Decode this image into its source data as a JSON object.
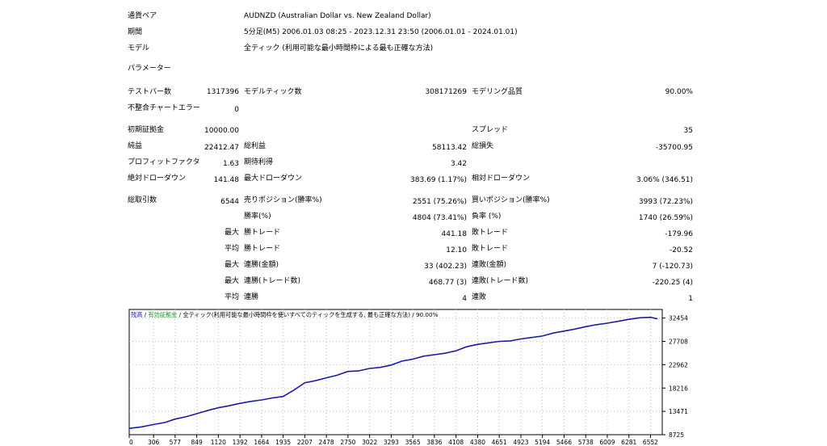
{
  "header": {
    "symbol_label": "通貨ペア",
    "symbol_value": "AUDNZD (Australian Dollar vs. New Zealand Dollar)",
    "period_label": "期間",
    "period_value": "5分足(M5) 2006.01.03 08:25 - 2023.12.31 23:50 (2006.01.01 - 2024.01.01)",
    "model_label": "モデル",
    "model_value": "全ティック (利用可能な最小時間枠による最も正確な方法)",
    "params_label": "パラメーター"
  },
  "stats": {
    "bars_label": "テストバー数",
    "bars_value": "1317396",
    "ticks_label": "モデルティック数",
    "ticks_value": "308171269",
    "quality_label": "モデリング品質",
    "quality_value": "90.00%",
    "mismatch_label": "不整合チャートエラー",
    "mismatch_value": "0",
    "deposit_label": "初期証拠金",
    "deposit_value": "10000.00",
    "spread_label": "スプレッド",
    "spread_value": "35",
    "netprofit_label": "純益",
    "netprofit_value": "22412.47",
    "grossprofit_label": "総利益",
    "grossprofit_value": "58113.42",
    "grossloss_label": "総損失",
    "grossloss_value": "-35700.95",
    "pf_label": "プロフィットファクタ",
    "pf_value": "1.63",
    "expected_label": "期待利得",
    "expected_value": "3.42",
    "absdd_label": "絶対ドローダウン",
    "absdd_value": "141.48",
    "maxdd_label": "最大ドローダウン",
    "maxdd_value": "383.69 (1.17%)",
    "reldd_label": "相対ドローダウン",
    "reldd_value": "3.06% (346.51)",
    "totaltrades_label": "総取引数",
    "totaltrades_value": "6544",
    "short_label": "売りポジション(勝率%)",
    "short_value": "2551 (75.26%)",
    "long_label": "買いポジション(勝率%)",
    "long_value": "3993 (72.23%)",
    "winrate_label": "勝率(%)",
    "winrate_value": "4804 (73.41%)",
    "lossrate_label": "負率 (%)",
    "lossrate_value": "1740 (26.59%)",
    "max_label": "最大",
    "avg_label": "平均",
    "win_trade_label": "勝トレード",
    "loss_trade_label": "敗トレード",
    "maxwin_value": "441.18",
    "maxloss_value": "-179.96",
    "avgwin_value": "12.10",
    "avgloss_value": "-20.52",
    "conswin_amount_label": "連勝(金額)",
    "conswin_amount_value": "33 (402.23)",
    "consloss_amount_label": "連敗(金額)",
    "consloss_amount_value": "7 (-120.73)",
    "conswin_trades_label": "連勝(トレード数)",
    "conswin_trades_value": "468.77 (3)",
    "consloss_trades_label": "連敗(トレード数)",
    "consloss_trades_value": "-220.25 (4)",
    "avgconswin_label": "連勝",
    "avgconswin_value": "4",
    "avgconsloss_label": "連敗",
    "avgconsloss_value": "1"
  },
  "colors": {
    "balance": "#1c1ca8",
    "equity": "#1f9a1f",
    "grid": "#bfbfbf"
  },
  "chart_data": {
    "type": "line",
    "legend": {
      "balance": "残高",
      "sep1": " / ",
      "equity": "有効証拠金",
      "sep2": " / ",
      "model": "全ティック(利用可能な最小時間枠を使いすべてのティックを生成する, 最も正確な方法)",
      "sep3": " / ",
      "quality": "90.00%"
    },
    "x_ticks": [
      "0",
      "306",
      "577",
      "849",
      "1120",
      "1392",
      "1664",
      "1935",
      "2207",
      "2478",
      "2750",
      "3022",
      "3293",
      "3565",
      "3836",
      "4108",
      "4380",
      "4651",
      "4923",
      "5194",
      "5466",
      "5738",
      "6009",
      "6281",
      "6552"
    ],
    "y_ticks": [
      "8725",
      "13471",
      "18216",
      "22962",
      "27708",
      "32454"
    ],
    "ylim": [
      8725,
      34200
    ],
    "xlim": [
      0,
      6700
    ],
    "series": [
      {
        "role": "balance",
        "x": [
          0,
          150,
          306,
          450,
          577,
          720,
          849,
          1000,
          1120,
          1250,
          1392,
          1530,
          1664,
          1800,
          1935,
          2070,
          2207,
          2340,
          2478,
          2610,
          2750,
          2880,
          3022,
          3150,
          3293,
          3430,
          3565,
          3700,
          3836,
          3970,
          4108,
          4240,
          4380,
          4510,
          4651,
          4790,
          4923,
          5060,
          5194,
          5330,
          5466,
          5600,
          5738,
          5870,
          6009,
          6150,
          6281,
          6420,
          6552,
          6640
        ],
        "y": [
          10000,
          10300,
          10800,
          11200,
          11900,
          12400,
          13000,
          13700,
          14200,
          14600,
          15100,
          15500,
          15800,
          16200,
          16500,
          17800,
          19300,
          19700,
          20300,
          20800,
          21600,
          21700,
          22200,
          22400,
          22900,
          23700,
          24100,
          24700,
          25000,
          25300,
          25800,
          26600,
          27100,
          27400,
          27700,
          27800,
          28200,
          28500,
          28800,
          29400,
          29800,
          30200,
          30700,
          31100,
          31400,
          31800,
          32200,
          32500,
          32600,
          32300
        ]
      }
    ]
  }
}
